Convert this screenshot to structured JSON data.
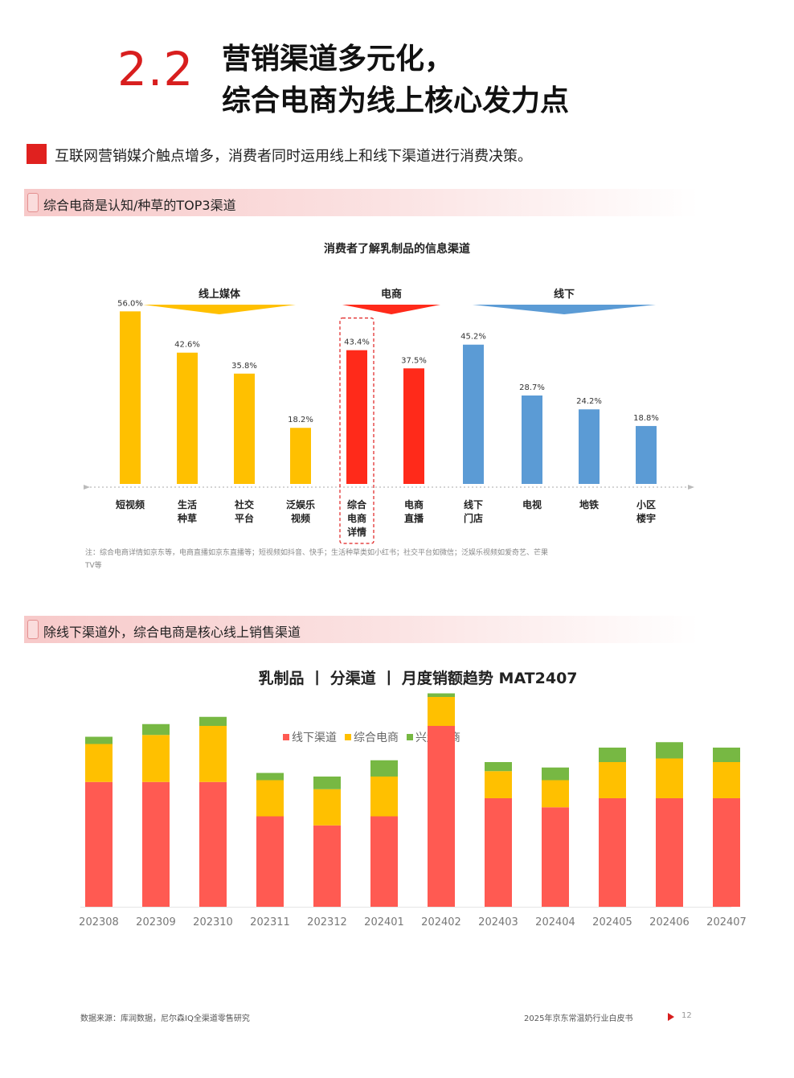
{
  "header": {
    "section_number": "2.2",
    "title_line1": "营销渠道多元化，",
    "title_line2": "综合电商为线上核心发力点"
  },
  "intro": "互联网营销媒介触点增多，消费者同时运用线上和线下渠道进行消费决策。",
  "band1": "综合电商是认知/种草的TOP3渠道",
  "band2": "除线下渠道外，综合电商是核心线上销售渠道",
  "colors": {
    "online_media": "#ffc000",
    "ecommerce": "#ff2a1a",
    "offline": "#5b9bd5",
    "offline_channel": "#ff5a52",
    "comprehensive_ecommerce": "#ffc000",
    "interest_ecommerce": "#77b843"
  },
  "chart_data": [
    {
      "type": "bar",
      "title": "消费者了解乳制品的信息渠道",
      "groups": [
        {
          "label": "线上媒体",
          "color": "#ffc000"
        },
        {
          "label": "电商",
          "color": "#ff2a1a"
        },
        {
          "label": "线下",
          "color": "#5b9bd5"
        }
      ],
      "categories": [
        [
          "短视频"
        ],
        [
          "生活",
          "种草"
        ],
        [
          "社交",
          "平台"
        ],
        [
          "泛娱乐",
          "视频"
        ],
        [
          "综合",
          "电商",
          "详情"
        ],
        [
          "电商",
          "直播"
        ],
        [
          "线下",
          "门店"
        ],
        [
          "电视"
        ],
        [
          "地铁"
        ],
        [
          "小区",
          "楼宇"
        ]
      ],
      "values": [
        56.0,
        42.6,
        35.8,
        18.2,
        43.4,
        37.5,
        45.2,
        28.7,
        24.2,
        18.8
      ],
      "value_labels": [
        "56.0%",
        "42.6%",
        "35.8%",
        "18.2%",
        "43.4%",
        "37.5%",
        "45.2%",
        "28.7%",
        "24.2%",
        "18.8%"
      ],
      "group_index": [
        0,
        0,
        0,
        0,
        1,
        1,
        2,
        2,
        2,
        2
      ],
      "highlight_index": 4,
      "ylim": [
        0,
        60
      ],
      "note": "注：综合电商详情如京东等，电商直播如京东直播等；短视频如抖音、快手；生活种草类如小红书；社交平台如微信；泛娱乐视频如爱奇艺、芒果TV等"
    },
    {
      "type": "bar",
      "stacked": true,
      "title": "乳制品 丨 分渠道 丨 月度销额趋势 MAT2407",
      "legend_position": "top-center",
      "categories": [
        "202308",
        "202309",
        "202310",
        "202311",
        "202312",
        "202401",
        "202402",
        "202403",
        "202404",
        "202405",
        "202406",
        "202407"
      ],
      "series": [
        {
          "name": "线下渠道",
          "color": "#ff5a52",
          "values": [
            69,
            69,
            69,
            50,
            45,
            50,
            100,
            60,
            55,
            60,
            60,
            60
          ]
        },
        {
          "name": "综合电商",
          "color": "#ffc000",
          "values": [
            21,
            26,
            31,
            20,
            20,
            22,
            16,
            15,
            15,
            20,
            22,
            20
          ]
        },
        {
          "name": "兴趣电商",
          "color": "#77b843",
          "values": [
            4,
            6,
            5,
            4,
            7,
            9,
            2,
            5,
            7,
            8,
            9,
            8
          ]
        }
      ],
      "ylim": [
        0,
        120
      ]
    }
  ],
  "footer": {
    "source": "数据来源：库润数据，尼尔森IQ全渠道零售研究",
    "doc_title": "2025年京东常温奶行业白皮书",
    "page": "12"
  }
}
